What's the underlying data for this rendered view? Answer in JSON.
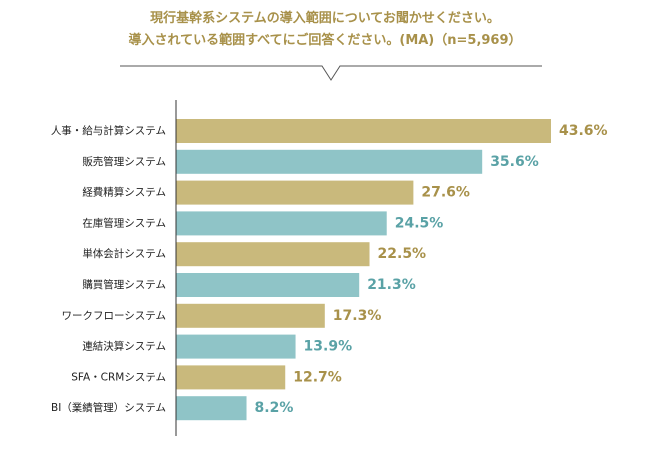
{
  "question": {
    "line1": "現行基幹系システムの導入範囲についてお聞かせください。",
    "line2": "導入されている範囲すべてにご回答ください。(MA)（n=5,969）"
  },
  "colors": {
    "gold": "#c9b97c",
    "teal": "#8fc4c7",
    "gold_text": "#a8914a",
    "teal_text": "#5aa2a6",
    "axis": "#333333"
  },
  "chart_data": {
    "type": "bar",
    "orientation": "horizontal",
    "categories": [
      "人事・給与計算システム",
      "販売管理システム",
      "経費精算システム",
      "在庫管理システム",
      "単体会計システム",
      "購買管理システム",
      "ワークフローシステム",
      "連結決算システム",
      "SFA・CRMシステム",
      "BI（業績管理）システム"
    ],
    "values": [
      43.6,
      35.6,
      27.6,
      24.5,
      22.5,
      21.3,
      17.3,
      13.9,
      12.7,
      8.2
    ],
    "value_labels": [
      "43.6%",
      "35.6%",
      "27.6%",
      "24.5%",
      "22.5%",
      "21.3%",
      "17.3%",
      "13.9%",
      "12.7%",
      "8.2%"
    ],
    "bar_colors": [
      "gold",
      "teal",
      "gold",
      "teal",
      "gold",
      "teal",
      "gold",
      "teal",
      "gold",
      "teal"
    ],
    "xlim": [
      0,
      43.6
    ],
    "grid": false
  }
}
